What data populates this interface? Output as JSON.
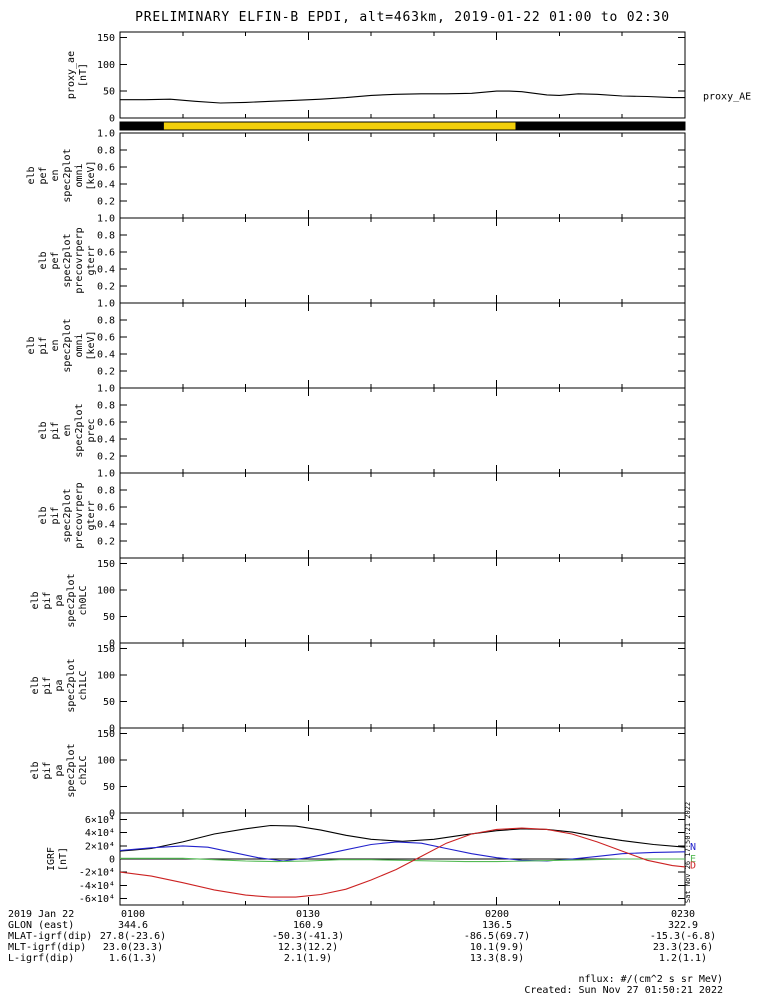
{
  "title": "PRELIMINARY ELFIN-B EPDI, alt=463km, 2019-01-22 01:00 to 02:30",
  "side_note": "Sat Nov 26 17:50:21 2022",
  "footer": {
    "date_label": "2019 Jan 22",
    "rows": [
      {
        "label": "GLON (east)",
        "values": [
          "344.6",
          "160.9",
          "136.5",
          "322.9"
        ]
      },
      {
        "label": "MLAT-igrf(dip)",
        "values": [
          "27.8(-23.6)",
          "-50.3(-41.3)",
          "-86.5(69.7)",
          "-15.3(-6.8)"
        ]
      },
      {
        "label": "MLT-igrf(dip)",
        "values": [
          "23.0(23.3)",
          "12.3(12.2)",
          "10.1(9.9)",
          "23.3(23.6)"
        ]
      },
      {
        "label": "L-igrf(dip)",
        "values": [
          "1.6(1.3)",
          "2.1(1.9)",
          "13.3(8.9)",
          "1.2(1.1)"
        ]
      }
    ],
    "nflux_note": "nflux: #/(cm^2 s sr MeV)",
    "created_note": "Created: Sun Nov 27 01:50:21 2022"
  },
  "chart_data": {
    "type": "line",
    "title": "PRELIMINARY ELFIN-B EPDI, alt=463km, 2019-01-22 01:00 to 02:30",
    "time_axis": {
      "range_minutes": [
        0,
        90
      ],
      "major_minutes": [
        0,
        30,
        60,
        90
      ],
      "minor_step_minutes": 10,
      "labels": [
        "0100",
        "0130",
        "0200",
        "0230"
      ]
    },
    "panels": [
      {
        "name": "proxy_ae",
        "type": "line",
        "label_lines": [
          "proxy_ae",
          "[nT]"
        ],
        "ylim": [
          0,
          160
        ],
        "yticks": [
          {
            "v": 0,
            "t": "0"
          },
          {
            "v": 50,
            "t": "50"
          },
          {
            "v": 100,
            "t": "100"
          },
          {
            "v": 150,
            "t": "150"
          }
        ],
        "right_label": {
          "text": "proxy_AE",
          "v": 40
        },
        "series": [
          {
            "name": "proxy_AE",
            "color": "#000000",
            "t": [
              0,
              4,
              8,
              12,
              16,
              20,
              24,
              28,
              32,
              36,
              40,
              44,
              48,
              52,
              56,
              60,
              62,
              64,
              66,
              68,
              70,
              73,
              76,
              80,
              84,
              88,
              90
            ],
            "v": [
              34,
              34,
              35,
              31,
              28,
              29,
              31,
              33,
              35,
              38,
              42,
              44,
              45,
              45,
              46,
              50,
              50,
              49,
              46,
              43,
              42,
              45,
              44,
              41,
              40,
              38,
              38
            ]
          }
        ]
      },
      {
        "name": "availability_bar",
        "type": "segment_bar",
        "segments": [
          {
            "t0": 0,
            "t1": 7,
            "color": "#000000"
          },
          {
            "t0": 7,
            "t1": 63,
            "color": "#f2cf0a"
          },
          {
            "t0": 63,
            "t1": 90,
            "color": "#000000"
          }
        ]
      },
      {
        "name": "elb_pef_en_spec2plot_omni",
        "type": "empty",
        "label_lines": [
          "elb",
          "pef",
          "en",
          "spec2plot",
          "omni",
          "[keV]"
        ],
        "ylim": [
          0,
          1
        ],
        "yticks": [
          {
            "v": 0.2,
            "t": "0.2"
          },
          {
            "v": 0.4,
            "t": "0.4"
          },
          {
            "v": 0.6,
            "t": "0.6"
          },
          {
            "v": 0.8,
            "t": "0.8"
          },
          {
            "v": 1.0,
            "t": "1.0"
          }
        ]
      },
      {
        "name": "elb_pef_spec2plot_precovrperp_gterr",
        "type": "empty",
        "label_lines": [
          "elb",
          "pef",
          "spec2plot",
          "precovrperp",
          "gterr"
        ],
        "ylim": [
          0,
          1
        ],
        "yticks": [
          {
            "v": 0.2,
            "t": "0.2"
          },
          {
            "v": 0.4,
            "t": "0.4"
          },
          {
            "v": 0.6,
            "t": "0.6"
          },
          {
            "v": 0.8,
            "t": "0.8"
          },
          {
            "v": 1.0,
            "t": "1.0"
          }
        ]
      },
      {
        "name": "elb_pif_en_spec2plot_omni",
        "type": "empty",
        "label_lines": [
          "elb",
          "pif",
          "en",
          "spec2plot",
          "omni",
          "[keV]"
        ],
        "ylim": [
          0,
          1
        ],
        "yticks": [
          {
            "v": 0.2,
            "t": "0.2"
          },
          {
            "v": 0.4,
            "t": "0.4"
          },
          {
            "v": 0.6,
            "t": "0.6"
          },
          {
            "v": 0.8,
            "t": "0.8"
          },
          {
            "v": 1.0,
            "t": "1.0"
          }
        ]
      },
      {
        "name": "elb_pif_en_spec2plot_prec",
        "type": "empty",
        "label_lines": [
          "elb",
          "pif",
          "en",
          "spec2plot",
          "prec"
        ],
        "ylim": [
          0,
          1
        ],
        "yticks": [
          {
            "v": 0.2,
            "t": "0.2"
          },
          {
            "v": 0.4,
            "t": "0.4"
          },
          {
            "v": 0.6,
            "t": "0.6"
          },
          {
            "v": 0.8,
            "t": "0.8"
          },
          {
            "v": 1.0,
            "t": "1.0"
          }
        ]
      },
      {
        "name": "elb_pif_spec2plot_precovrperp_gterr",
        "type": "empty",
        "label_lines": [
          "elb",
          "pif",
          "spec2plot",
          "precovrperp",
          "gterr"
        ],
        "ylim": [
          0,
          1
        ],
        "yticks": [
          {
            "v": 0.2,
            "t": "0.2"
          },
          {
            "v": 0.4,
            "t": "0.4"
          },
          {
            "v": 0.6,
            "t": "0.6"
          },
          {
            "v": 0.8,
            "t": "0.8"
          },
          {
            "v": 1.0,
            "t": "1.0"
          }
        ]
      },
      {
        "name": "elb_pif_pa_spec2plot_ch0LC",
        "type": "empty",
        "label_lines": [
          "elb",
          "pif",
          "pa",
          "spec2plot",
          "ch0LC"
        ],
        "ylim": [
          0,
          160
        ],
        "yticks": [
          {
            "v": 0,
            "t": "0"
          },
          {
            "v": 50,
            "t": "50"
          },
          {
            "v": 100,
            "t": "100"
          },
          {
            "v": 150,
            "t": "150"
          }
        ]
      },
      {
        "name": "elb_pif_pa_spec2plot_ch1LC",
        "type": "empty",
        "label_lines": [
          "elb",
          "pif",
          "pa",
          "spec2plot",
          "ch1LC"
        ],
        "ylim": [
          0,
          160
        ],
        "yticks": [
          {
            "v": 0,
            "t": "0"
          },
          {
            "v": 50,
            "t": "50"
          },
          {
            "v": 100,
            "t": "100"
          },
          {
            "v": 150,
            "t": "150"
          }
        ]
      },
      {
        "name": "elb_pif_pa_spec2plot_ch2LC",
        "type": "empty",
        "label_lines": [
          "elb",
          "pif",
          "pa",
          "spec2plot",
          "ch2LC"
        ],
        "ylim": [
          0,
          160
        ],
        "yticks": [
          {
            "v": 0,
            "t": "0"
          },
          {
            "v": 50,
            "t": "50"
          },
          {
            "v": 100,
            "t": "100"
          },
          {
            "v": 150,
            "t": "150"
          }
        ]
      },
      {
        "name": "igrf",
        "type": "line",
        "label_lines": [
          "IGRF",
          "[nT]"
        ],
        "ylim": [
          -70000,
          70000
        ],
        "hline": 0,
        "yticks": [
          {
            "v": -60000,
            "t": "-6×10⁴"
          },
          {
            "v": -40000,
            "t": "-4×10⁴"
          },
          {
            "v": -20000,
            "t": "-2×10⁴"
          },
          {
            "v": 0,
            "t": "0"
          },
          {
            "v": 20000,
            "t": "2×10⁴"
          },
          {
            "v": 40000,
            "t": "4×10⁴"
          },
          {
            "v": 60000,
            "t": "6×10⁴"
          }
        ],
        "line_labels": [
          {
            "text": "N",
            "color": "#2222cc",
            "v": 18000
          },
          {
            "text": "E",
            "color": "#55bb55",
            "v": 0
          },
          {
            "text": "D",
            "color": "#cc2222",
            "v": -10000
          }
        ],
        "series": [
          {
            "name": "total",
            "color": "#000000",
            "t": [
              0,
              5,
              10,
              15,
              20,
              24,
              28,
              32,
              36,
              40,
              45,
              50,
              55,
              60,
              64,
              68,
              72,
              76,
              80,
              85,
              90
            ],
            "v": [
              12000,
              16000,
              26000,
              38000,
              46000,
              51000,
              50000,
              44000,
              36000,
              30000,
              27000,
              30000,
              37000,
              43000,
              46000,
              45000,
              41000,
              34000,
              28000,
              22000,
              18000
            ]
          },
          {
            "name": "N",
            "color": "#2222cc",
            "t": [
              0,
              5,
              10,
              14,
              18,
              22,
              26,
              30,
              35,
              40,
              44,
              48,
              52,
              56,
              60,
              64,
              68,
              72,
              76,
              80,
              85,
              90
            ],
            "v": [
              13000,
              17000,
              20000,
              18000,
              10000,
              2000,
              -3000,
              2000,
              12000,
              22000,
              26000,
              24000,
              16000,
              8000,
              2000,
              -2000,
              -3000,
              0,
              4000,
              8000,
              10000,
              11000
            ]
          },
          {
            "name": "E",
            "color": "#55bb55",
            "t": [
              0,
              10,
              15,
              20,
              25,
              30,
              35,
              40,
              45,
              50,
              55,
              60,
              65,
              70,
              75,
              80,
              85,
              90
            ],
            "v": [
              1000,
              1000,
              -1000,
              -3000,
              -4000,
              -3000,
              -1000,
              -1000,
              -2000,
              -3000,
              -4000,
              -4000,
              -3000,
              -2000,
              -1000,
              0,
              0,
              0
            ]
          },
          {
            "name": "D",
            "color": "#cc2222",
            "t": [
              0,
              5,
              10,
              15,
              20,
              24,
              28,
              32,
              36,
              40,
              44,
              48,
              52,
              56,
              60,
              64,
              68,
              72,
              76,
              80,
              84,
              88,
              90
            ],
            "v": [
              -20000,
              -26000,
              -36000,
              -47000,
              -55000,
              -58000,
              -58000,
              -54000,
              -46000,
              -32000,
              -16000,
              4000,
              24000,
              38000,
              45000,
              47000,
              45000,
              38000,
              26000,
              12000,
              -2000,
              -10000,
              -12000
            ]
          }
        ]
      }
    ]
  }
}
